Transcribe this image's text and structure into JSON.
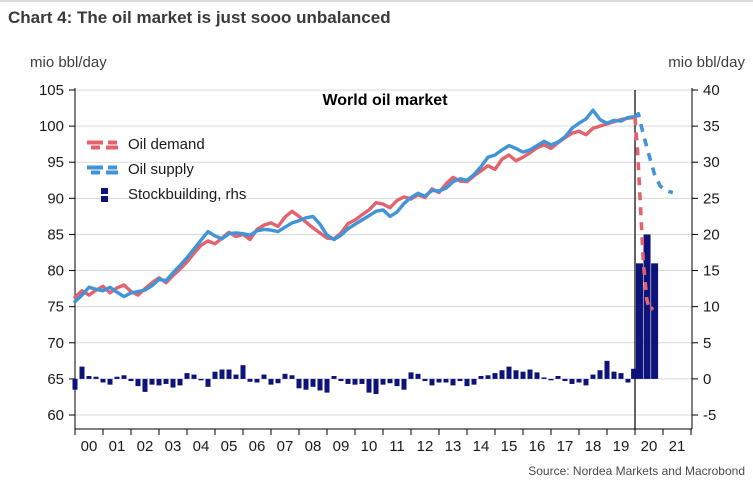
{
  "page": {
    "title": "Chart 4: The oil market is just sooo unbalanced",
    "source": "Source: Nordea Markets and Macrobond"
  },
  "chart_data": {
    "type": "line",
    "title": "World oil market",
    "left_axis": {
      "label": "mio bbl/day",
      "min": 60,
      "max": 105,
      "ticks": [
        105,
        100,
        95,
        90,
        85,
        80,
        75,
        70,
        65,
        60
      ]
    },
    "right_axis": {
      "label": "mio bbl/day",
      "min": -5,
      "max": 40,
      "ticks": [
        40,
        35,
        30,
        25,
        20,
        15,
        10,
        5,
        0,
        -5
      ]
    },
    "x_axis": {
      "start_year": 2000,
      "end_year": 2022,
      "labels": [
        "00",
        "01",
        "02",
        "03",
        "04",
        "05",
        "06",
        "07",
        "08",
        "09",
        "10",
        "11",
        "12",
        "13",
        "14",
        "15",
        "16",
        "17",
        "18",
        "19",
        "20",
        "21"
      ]
    },
    "marker_line_x": 2020.0,
    "grid": "horizontal",
    "legend_position": "top-left",
    "colors": {
      "demand": "#e2636e",
      "supply": "#4195d7",
      "stockbuilding": "#0d1379",
      "grid": "#d9d9d9",
      "axis": "#000000"
    },
    "legend": [
      {
        "label": "Oil demand",
        "color": "#e2636e",
        "type": "line"
      },
      {
        "label": "Oil supply",
        "color": "#4195d7",
        "type": "line"
      },
      {
        "label": "Stockbuilding, rhs",
        "color": "#0d1379",
        "type": "bar"
      }
    ],
    "series": [
      {
        "name": "Oil demand",
        "axis": "left",
        "style": "solid",
        "color": "#e2636e",
        "points": [
          [
            2000.0,
            76.3
          ],
          [
            2000.25,
            77.2
          ],
          [
            2000.5,
            76.6
          ],
          [
            2000.75,
            77.3
          ],
          [
            2001.0,
            77.8
          ],
          [
            2001.25,
            76.9
          ],
          [
            2001.5,
            77.6
          ],
          [
            2001.75,
            78.0
          ],
          [
            2002.0,
            77.1
          ],
          [
            2002.25,
            76.6
          ],
          [
            2002.5,
            77.5
          ],
          [
            2002.75,
            78.3
          ],
          [
            2003.0,
            79.0
          ],
          [
            2003.25,
            78.3
          ],
          [
            2003.5,
            79.3
          ],
          [
            2003.75,
            80.2
          ],
          [
            2004.0,
            81.2
          ],
          [
            2004.25,
            82.4
          ],
          [
            2004.5,
            83.5
          ],
          [
            2004.75,
            84.1
          ],
          [
            2005.0,
            83.7
          ],
          [
            2005.25,
            84.5
          ],
          [
            2005.5,
            85.3
          ],
          [
            2005.75,
            84.7
          ],
          [
            2006.0,
            85.0
          ],
          [
            2006.25,
            84.3
          ],
          [
            2006.5,
            85.7
          ],
          [
            2006.75,
            86.3
          ],
          [
            2007.0,
            86.6
          ],
          [
            2007.25,
            86.1
          ],
          [
            2007.5,
            87.4
          ],
          [
            2007.75,
            88.2
          ],
          [
            2008.0,
            87.5
          ],
          [
            2008.25,
            86.7
          ],
          [
            2008.5,
            85.9
          ],
          [
            2008.75,
            85.2
          ],
          [
            2009.0,
            84.5
          ],
          [
            2009.25,
            84.4
          ],
          [
            2009.5,
            85.2
          ],
          [
            2009.75,
            86.5
          ],
          [
            2010.0,
            87.0
          ],
          [
            2010.25,
            87.7
          ],
          [
            2010.5,
            88.4
          ],
          [
            2010.75,
            89.4
          ],
          [
            2011.0,
            89.2
          ],
          [
            2011.25,
            88.7
          ],
          [
            2011.5,
            89.7
          ],
          [
            2011.75,
            90.2
          ],
          [
            2012.0,
            89.9
          ],
          [
            2012.25,
            90.5
          ],
          [
            2012.5,
            90.1
          ],
          [
            2012.75,
            91.3
          ],
          [
            2013.0,
            90.8
          ],
          [
            2013.25,
            92.0
          ],
          [
            2013.5,
            92.9
          ],
          [
            2013.75,
            92.4
          ],
          [
            2014.0,
            92.3
          ],
          [
            2014.25,
            93.1
          ],
          [
            2014.5,
            93.8
          ],
          [
            2014.75,
            94.5
          ],
          [
            2015.0,
            94.0
          ],
          [
            2015.25,
            95.4
          ],
          [
            2015.5,
            96.0
          ],
          [
            2015.75,
            95.2
          ],
          [
            2016.0,
            95.7
          ],
          [
            2016.25,
            96.3
          ],
          [
            2016.5,
            97.0
          ],
          [
            2016.75,
            97.4
          ],
          [
            2017.0,
            96.9
          ],
          [
            2017.25,
            97.7
          ],
          [
            2017.5,
            98.4
          ],
          [
            2017.75,
            99.0
          ],
          [
            2018.0,
            99.3
          ],
          [
            2018.25,
            98.8
          ],
          [
            2018.5,
            99.7
          ],
          [
            2018.75,
            100.0
          ],
          [
            2019.0,
            100.3
          ],
          [
            2019.25,
            100.6
          ],
          [
            2019.5,
            100.9
          ],
          [
            2019.75,
            101.1
          ],
          [
            2020.0,
            101.2
          ]
        ]
      },
      {
        "name": "Oil supply",
        "axis": "left",
        "style": "solid",
        "color": "#4195d7",
        "points": [
          [
            2000.0,
            75.7
          ],
          [
            2000.25,
            76.6
          ],
          [
            2000.5,
            77.7
          ],
          [
            2000.75,
            77.4
          ],
          [
            2001.0,
            77.2
          ],
          [
            2001.25,
            77.7
          ],
          [
            2001.5,
            77.0
          ],
          [
            2001.75,
            76.4
          ],
          [
            2002.0,
            76.9
          ],
          [
            2002.25,
            77.1
          ],
          [
            2002.5,
            77.3
          ],
          [
            2002.75,
            77.9
          ],
          [
            2003.0,
            78.8
          ],
          [
            2003.25,
            78.6
          ],
          [
            2003.5,
            79.7
          ],
          [
            2003.75,
            80.7
          ],
          [
            2004.0,
            81.8
          ],
          [
            2004.25,
            83.0
          ],
          [
            2004.5,
            84.2
          ],
          [
            2004.75,
            85.4
          ],
          [
            2005.0,
            84.8
          ],
          [
            2005.25,
            84.4
          ],
          [
            2005.5,
            85.1
          ],
          [
            2005.75,
            85.2
          ],
          [
            2006.0,
            85.1
          ],
          [
            2006.25,
            84.9
          ],
          [
            2006.5,
            85.5
          ],
          [
            2006.75,
            85.7
          ],
          [
            2007.0,
            85.6
          ],
          [
            2007.25,
            85.4
          ],
          [
            2007.5,
            86.0
          ],
          [
            2007.75,
            86.6
          ],
          [
            2008.0,
            86.9
          ],
          [
            2008.25,
            87.3
          ],
          [
            2008.5,
            87.5
          ],
          [
            2008.75,
            86.4
          ],
          [
            2009.0,
            84.9
          ],
          [
            2009.25,
            84.3
          ],
          [
            2009.5,
            84.9
          ],
          [
            2009.75,
            85.8
          ],
          [
            2010.0,
            86.4
          ],
          [
            2010.25,
            87.0
          ],
          [
            2010.5,
            87.6
          ],
          [
            2010.75,
            88.2
          ],
          [
            2011.0,
            88.4
          ],
          [
            2011.25,
            87.5
          ],
          [
            2011.5,
            88.1
          ],
          [
            2011.75,
            89.3
          ],
          [
            2012.0,
            90.1
          ],
          [
            2012.25,
            90.7
          ],
          [
            2012.5,
            90.3
          ],
          [
            2012.75,
            91.1
          ],
          [
            2013.0,
            91.0
          ],
          [
            2013.25,
            91.4
          ],
          [
            2013.5,
            92.3
          ],
          [
            2013.75,
            92.7
          ],
          [
            2014.0,
            92.5
          ],
          [
            2014.25,
            93.3
          ],
          [
            2014.5,
            94.4
          ],
          [
            2014.75,
            95.7
          ],
          [
            2015.0,
            96.0
          ],
          [
            2015.25,
            96.7
          ],
          [
            2015.5,
            97.3
          ],
          [
            2015.75,
            96.9
          ],
          [
            2016.0,
            96.4
          ],
          [
            2016.25,
            96.7
          ],
          [
            2016.5,
            97.3
          ],
          [
            2016.75,
            97.9
          ],
          [
            2017.0,
            97.4
          ],
          [
            2017.25,
            97.8
          ],
          [
            2017.5,
            98.5
          ],
          [
            2017.75,
            99.7
          ],
          [
            2018.0,
            100.4
          ],
          [
            2018.25,
            101.0
          ],
          [
            2018.5,
            102.2
          ],
          [
            2018.75,
            100.9
          ],
          [
            2019.0,
            100.4
          ],
          [
            2019.25,
            100.8
          ],
          [
            2019.5,
            100.7
          ],
          [
            2019.75,
            101.2
          ],
          [
            2020.0,
            101.3
          ]
        ]
      },
      {
        "name": "Oil demand forecast",
        "axis": "left",
        "style": "dashed",
        "color": "#e2636e",
        "points": [
          [
            2020.0,
            101.2
          ],
          [
            2020.1,
            96.0
          ],
          [
            2020.2,
            88.5
          ],
          [
            2020.3,
            81.0
          ],
          [
            2020.42,
            76.0
          ],
          [
            2020.52,
            74.5
          ],
          [
            2020.65,
            74.9
          ]
        ]
      },
      {
        "name": "Oil supply forecast",
        "axis": "left",
        "style": "dashed",
        "color": "#4195d7",
        "points": [
          [
            2020.0,
            101.3
          ],
          [
            2020.12,
            101.7
          ],
          [
            2020.25,
            99.6
          ],
          [
            2020.4,
            97.4
          ],
          [
            2020.55,
            95.3
          ],
          [
            2020.7,
            93.3
          ],
          [
            2020.9,
            91.7
          ],
          [
            2021.15,
            91.0
          ],
          [
            2021.35,
            90.8
          ]
        ]
      },
      {
        "name": "Stockbuilding, rhs",
        "axis": "right",
        "style": "bar",
        "color": "#0d1379",
        "points": [
          [
            2000.0,
            -1.5
          ],
          [
            2000.25,
            1.7
          ],
          [
            2000.5,
            0.4
          ],
          [
            2000.75,
            0.3
          ],
          [
            2001.0,
            -0.5
          ],
          [
            2001.25,
            -0.8
          ],
          [
            2001.5,
            0.3
          ],
          [
            2001.75,
            0.5
          ],
          [
            2002.0,
            -0.3
          ],
          [
            2002.25,
            -1.0
          ],
          [
            2002.5,
            -1.8
          ],
          [
            2002.75,
            -0.8
          ],
          [
            2003.0,
            -0.9
          ],
          [
            2003.25,
            -0.7
          ],
          [
            2003.5,
            -1.2
          ],
          [
            2003.75,
            -0.9
          ],
          [
            2004.0,
            0.8
          ],
          [
            2004.25,
            0.6
          ],
          [
            2004.5,
            -0.2
          ],
          [
            2004.75,
            -1.1
          ],
          [
            2005.0,
            1.0
          ],
          [
            2005.25,
            1.3
          ],
          [
            2005.5,
            1.3
          ],
          [
            2005.75,
            0.6
          ],
          [
            2006.0,
            1.9
          ],
          [
            2006.25,
            -0.4
          ],
          [
            2006.5,
            -0.5
          ],
          [
            2006.75,
            0.6
          ],
          [
            2007.0,
            -0.8
          ],
          [
            2007.25,
            -0.6
          ],
          [
            2007.5,
            0.7
          ],
          [
            2007.75,
            0.5
          ],
          [
            2008.0,
            -1.3
          ],
          [
            2008.25,
            -1.5
          ],
          [
            2008.5,
            -1.1
          ],
          [
            2008.75,
            -1.6
          ],
          [
            2009.0,
            -1.9
          ],
          [
            2009.25,
            0.4
          ],
          [
            2009.5,
            -0.3
          ],
          [
            2009.75,
            -0.7
          ],
          [
            2010.0,
            -0.8
          ],
          [
            2010.25,
            -0.7
          ],
          [
            2010.5,
            -1.9
          ],
          [
            2010.75,
            -2.1
          ],
          [
            2011.0,
            -0.8
          ],
          [
            2011.25,
            -0.6
          ],
          [
            2011.5,
            -1.0
          ],
          [
            2011.75,
            -1.5
          ],
          [
            2012.0,
            0.9
          ],
          [
            2012.25,
            0.7
          ],
          [
            2012.5,
            -0.3
          ],
          [
            2012.75,
            -0.9
          ],
          [
            2013.0,
            -0.5
          ],
          [
            2013.25,
            -0.5
          ],
          [
            2013.5,
            -0.9
          ],
          [
            2013.75,
            -0.3
          ],
          [
            2014.0,
            -1.0
          ],
          [
            2014.25,
            -0.8
          ],
          [
            2014.5,
            0.4
          ],
          [
            2014.75,
            0.5
          ],
          [
            2015.0,
            0.8
          ],
          [
            2015.25,
            1.2
          ],
          [
            2015.5,
            1.7
          ],
          [
            2015.75,
            1.2
          ],
          [
            2016.0,
            1.0
          ],
          [
            2016.25,
            1.3
          ],
          [
            2016.5,
            0.9
          ],
          [
            2016.75,
            0.2
          ],
          [
            2017.0,
            -0.2
          ],
          [
            2017.25,
            0.4
          ],
          [
            2017.5,
            -0.3
          ],
          [
            2017.75,
            -0.7
          ],
          [
            2018.0,
            -0.5
          ],
          [
            2018.25,
            -0.9
          ],
          [
            2018.5,
            0.6
          ],
          [
            2018.75,
            1.2
          ],
          [
            2019.0,
            2.5
          ],
          [
            2019.25,
            1.0
          ],
          [
            2019.5,
            0.8
          ],
          [
            2019.75,
            -0.5
          ],
          [
            2019.95,
            1.4
          ],
          [
            2020.16,
            16
          ],
          [
            2020.43,
            20
          ],
          [
            2020.7,
            16
          ]
        ]
      }
    ]
  }
}
